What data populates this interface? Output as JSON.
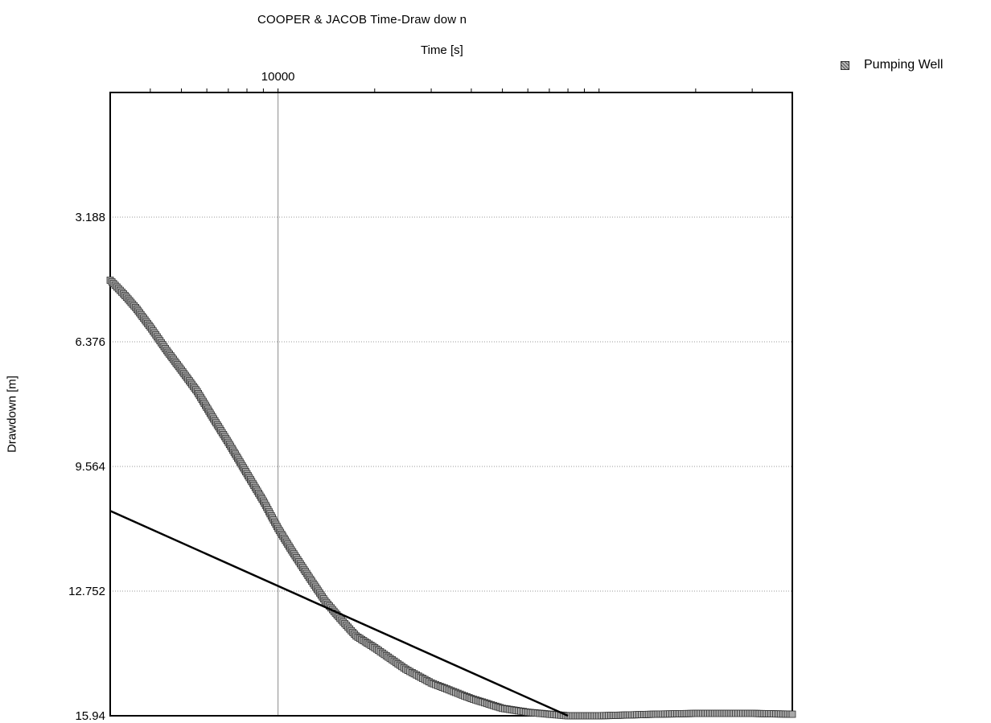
{
  "chart_data": {
    "type": "scatter",
    "title": "COOPER & JACOB Time-Draw dow n",
    "xlabel": "Time [s]",
    "ylabel": "Drawdown [m]",
    "x_scale": "log",
    "xlim": [
      3000,
      400000
    ],
    "x_ticks": [
      10000
    ],
    "x_tick_labels": [
      "10000"
    ],
    "ylim": [
      0,
      15.94
    ],
    "y_inverted": true,
    "y_ticks": [
      3.188,
      6.376,
      9.564,
      12.752,
      15.94
    ],
    "y_tick_labels": [
      "3.188",
      "6.376",
      "9.564",
      "12.752",
      "15.94"
    ],
    "grid": true,
    "legend_position": "top-right",
    "series": [
      {
        "name": "Pumping Well",
        "marker": "square",
        "color": "#888888",
        "x": [
          3000,
          3300,
          3600,
          4000,
          4500,
          5000,
          5600,
          6300,
          7000,
          8000,
          9000,
          10000,
          11000,
          12500,
          14000,
          15600,
          17500,
          20000,
          25000,
          30000,
          40000,
          50000,
          60000,
          70000,
          80000,
          100000,
          150000,
          200000,
          300000,
          400000
        ],
        "y": [
          4.8,
          5.15,
          5.5,
          6.0,
          6.6,
          7.1,
          7.65,
          8.35,
          8.95,
          9.75,
          10.45,
          11.15,
          11.7,
          12.4,
          13.0,
          13.45,
          13.9,
          14.2,
          14.75,
          15.1,
          15.5,
          15.75,
          15.85,
          15.9,
          15.94,
          15.94,
          15.9,
          15.88,
          15.88,
          15.9
        ]
      }
    ],
    "fit_line": {
      "color": "#000000",
      "x": [
        3000,
        80000
      ],
      "y": [
        10.7,
        15.94
      ]
    }
  }
}
